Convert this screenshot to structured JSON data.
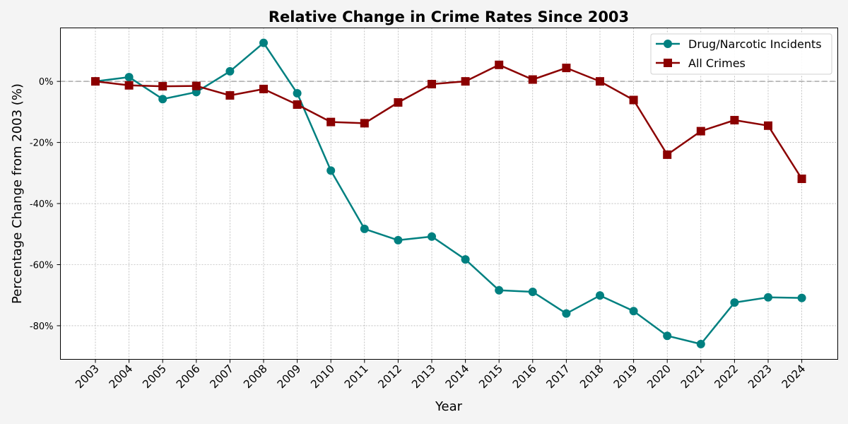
{
  "chart_data": {
    "type": "line",
    "title": "Relative Change in Crime Rates Since 2003",
    "xlabel": "Year",
    "ylabel": "Percentage Change from 2003 (%)",
    "x": [
      "2003",
      "2004",
      "2005",
      "2006",
      "2007",
      "2008",
      "2009",
      "2010",
      "2011",
      "2012",
      "2013",
      "2014",
      "2015",
      "2016",
      "2017",
      "2018",
      "2019",
      "2020",
      "2021",
      "2022",
      "2023",
      "2024"
    ],
    "ylim": [
      -91,
      17.5
    ],
    "yticks": [
      0,
      -20,
      -40,
      -60,
      -80
    ],
    "ytick_labels": [
      "0%",
      "-20%",
      "-40%",
      "-60%",
      "-80%"
    ],
    "reference_line": 0,
    "grid": true,
    "legend_position": "top-right",
    "series": [
      {
        "name": "Drug/Narcotic Incidents",
        "color": "#008080",
        "marker": "circle",
        "values": [
          0,
          1.4,
          -5.8,
          -3.5,
          3.3,
          12.6,
          -3.9,
          -29.2,
          -48.3,
          -52.0,
          -50.8,
          -58.3,
          -68.4,
          -68.9,
          -76.0,
          -70.1,
          -75.2,
          -83.3,
          -86.0,
          -72.4,
          -70.7,
          -70.9
        ]
      },
      {
        "name": "All Crimes",
        "color": "#8b0000",
        "marker": "square",
        "values": [
          0,
          -1.3,
          -1.6,
          -1.5,
          -4.6,
          -2.5,
          -7.6,
          -13.3,
          -13.7,
          -6.9,
          -0.9,
          0,
          5.4,
          0.6,
          4.4,
          0,
          -6.1,
          -24.0,
          -16.3,
          -12.7,
          -14.5,
          -31.9
        ]
      }
    ]
  }
}
